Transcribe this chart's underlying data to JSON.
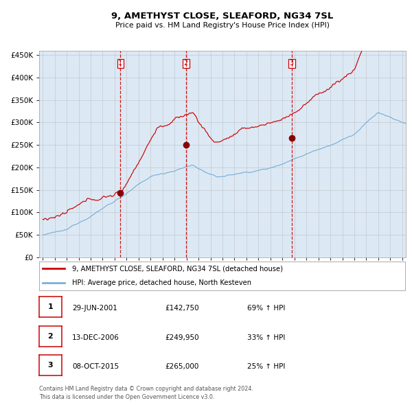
{
  "title": "9, AMETHYST CLOSE, SLEAFORD, NG34 7SL",
  "subtitle": "Price paid vs. HM Land Registry's House Price Index (HPI)",
  "bg_color": "#dce9f5",
  "plot_bg_color": "#dce9f5",
  "outer_bg_color": "#ffffff",
  "red_line_color": "#cc0000",
  "blue_line_color": "#7bafd4",
  "grid_color": "#bbbbbb",
  "sale_marker_color": "#880000",
  "dashed_line_color": "#cc0000",
  "sales": [
    {
      "date_str": "29-JUN-2001",
      "date_num": 2001.49,
      "price": 142750,
      "label": "1",
      "pct": "69%",
      "dir": "↑"
    },
    {
      "date_str": "13-DEC-2006",
      "date_num": 2006.95,
      "price": 249950,
      "label": "2",
      "pct": "33%",
      "dir": "↑"
    },
    {
      "date_str": "08-OCT-2015",
      "date_num": 2015.77,
      "price": 265000,
      "label": "3",
      "pct": "25%",
      "dir": "↑"
    }
  ],
  "legend_red": "9, AMETHYST CLOSE, SLEAFORD, NG34 7SL (detached house)",
  "legend_blue": "HPI: Average price, detached house, North Kesteven",
  "footer1": "Contains HM Land Registry data © Crown copyright and database right 2024.",
  "footer2": "This data is licensed under the Open Government Licence v3.0.",
  "ylim": [
    0,
    460000
  ],
  "yticks": [
    0,
    50000,
    100000,
    150000,
    200000,
    250000,
    300000,
    350000,
    400000,
    450000
  ],
  "year_start": 1995,
  "year_end": 2025
}
